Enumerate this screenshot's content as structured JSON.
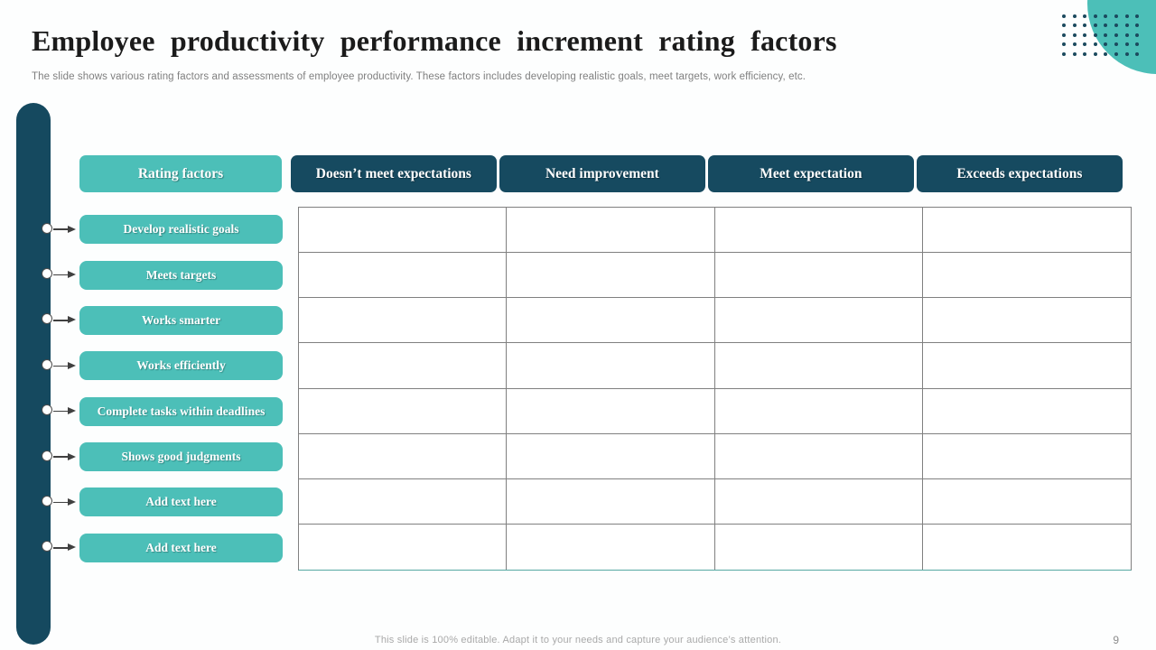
{
  "slide": {
    "title": "Employee productivity performance increment rating factors",
    "subtitle": "The slide shows various rating factors and assessments of employee productivity. These factors includes developing realistic goals, meet targets, work efficiency, etc.",
    "footer": "This slide is 100% editable. Adapt it to your needs and capture your audience’s attention.",
    "page_number": "9"
  },
  "colors": {
    "teal": "#4CBFB8",
    "dark_teal": "#164A60",
    "bar": "#15495F",
    "grid_line": "#808080",
    "dot": "#1B4A5E"
  },
  "table": {
    "header_rating": "Rating factors",
    "headers": [
      "Doesn’t meet expectations",
      "Need improvement",
      "Meet expectation",
      "Exceeds expectations"
    ],
    "row_labels": [
      "Develop realistic goals",
      "Meets targets",
      "Works smarter",
      "Works efficiently",
      "Complete tasks within  deadlines",
      "Shows good judgments",
      "Add text here",
      "Add text here"
    ],
    "rows": 8,
    "cols": 4
  },
  "decor": {
    "dots_cols": 8,
    "dots_rows": 5
  }
}
